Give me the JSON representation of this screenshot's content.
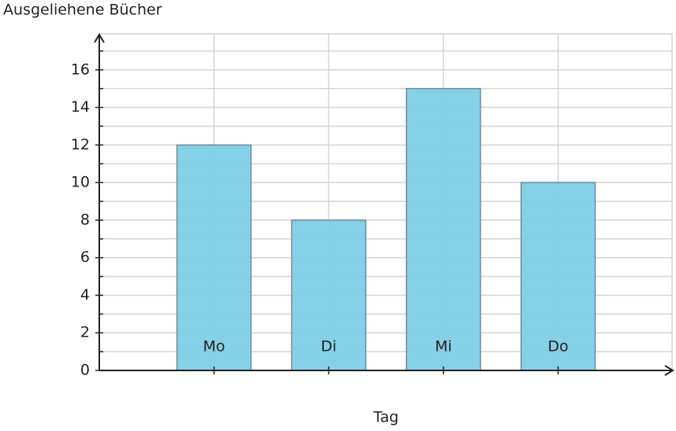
{
  "chart_data": {
    "type": "bar",
    "y_label": "Ausgeliehene Bücher",
    "x_label": "Tag",
    "categories": [
      "Mo",
      "Di",
      "Mi",
      "Do"
    ],
    "values": [
      12,
      8,
      15,
      10
    ],
    "color": "#7fcde7",
    "ylim": [
      0,
      18
    ],
    "yticks": [
      0,
      2,
      4,
      6,
      8,
      10,
      12,
      14,
      16
    ],
    "grid": true
  }
}
